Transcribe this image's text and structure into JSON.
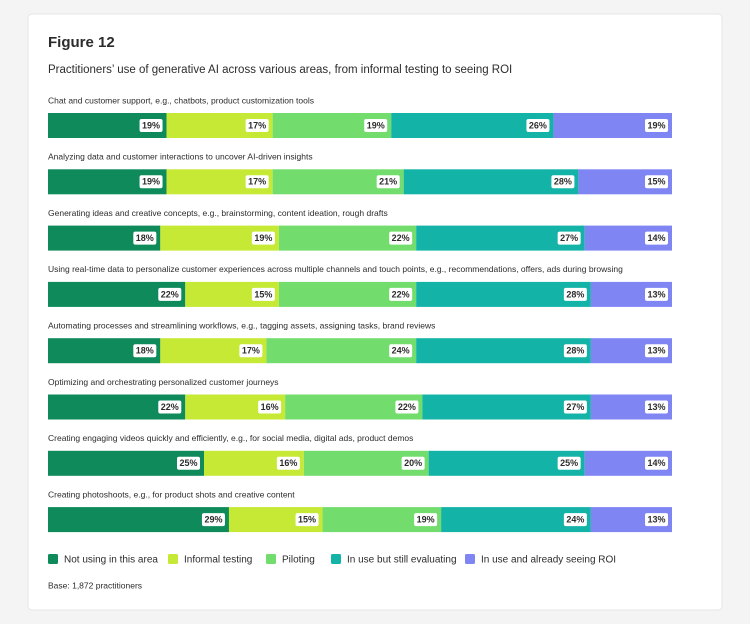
{
  "chart_data": {
    "type": "stacked-bar-horizontal",
    "title": "Figure 12",
    "subtitle": "Practitioners’ use of generative AI across various areas, from informal testing to seeing ROI",
    "note": "Base: 1,872 practitioners",
    "categories": [
      "Chat and customer support, e.g., chatbots, product customization tools",
      "Analyzing data and customer interactions to uncover AI-driven insights",
      "Generating ideas and creative concepts, e.g., brainstorming, content ideation, rough drafts",
      "Using real-time data to personalize customer experiences across multiple channels and touch points, e.g., recommendations, offers, ads during browsing",
      "Automating processes and streamlining workflows, e.g., tagging assets, assigning tasks, brand reviews",
      "Optimizing and orchestrating personalized customer journeys",
      "Creating engaging videos quickly and efficiently, e.g., for social media, digital ads, product demos",
      "Creating photoshoots, e.g., for product shots and creative content"
    ],
    "series": [
      {
        "name": "Not using in this area",
        "color": "#0e8a5b",
        "values": [
          19,
          19,
          18,
          22,
          18,
          22,
          25,
          29
        ],
        "value_labels": [
          "19%",
          "19%",
          "18%",
          "22%",
          "18%",
          "22%",
          "25%",
          "29%"
        ]
      },
      {
        "name": "Informal testing",
        "color": "#c6e936",
        "values": [
          17,
          17,
          19,
          15,
          17,
          16,
          16,
          15
        ],
        "value_labels": [
          "17%",
          "17%",
          "19%",
          "15%",
          "17%",
          "16%",
          "16%",
          "15%"
        ]
      },
      {
        "name": "Piloting",
        "color": "#72dd6d",
        "values": [
          19,
          21,
          22,
          22,
          24,
          22,
          20,
          19
        ],
        "value_labels": [
          "19%",
          "21%",
          "22%",
          "22%",
          "24%",
          "22%",
          "20%",
          "19%"
        ]
      },
      {
        "name": "In use but still evaluating",
        "color": "#14b3a8",
        "values": [
          26,
          28,
          27,
          28,
          28,
          27,
          25,
          24
        ],
        "value_labels": [
          "26%",
          "28%",
          "27%",
          "28%",
          "28%",
          "27%",
          "25%",
          "24%"
        ]
      },
      {
        "name": "In use and already seeing ROI",
        "color": "#7f86f4",
        "values": [
          19,
          15,
          14,
          13,
          13,
          13,
          14,
          13
        ],
        "value_labels": [
          "19%",
          "15%",
          "14%",
          "13%",
          "13%",
          "13%",
          "14%",
          "13%"
        ]
      }
    ]
  }
}
